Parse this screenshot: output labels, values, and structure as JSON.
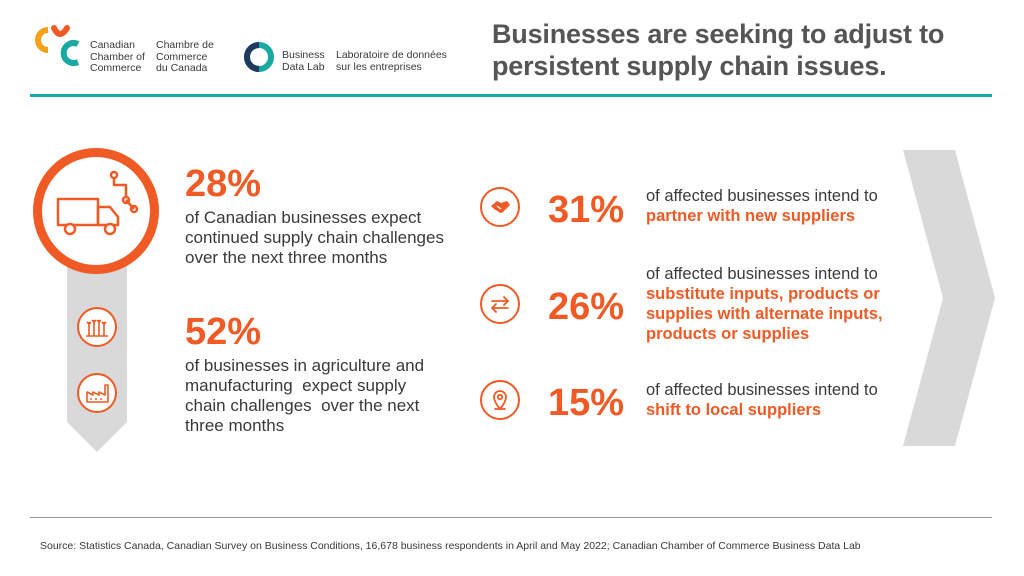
{
  "header": {
    "ccc_name_en": [
      "Canadian",
      "Chamber of",
      "Commerce"
    ],
    "ccc_name_fr": [
      "Chambre de",
      "Commerce",
      "du Canada"
    ],
    "bdl_name_en": [
      "Business",
      "Data Lab"
    ],
    "bdl_name_fr": [
      "Laboratoire de données",
      "sur les entreprises"
    ],
    "title_line1": "Businesses are seeking to adjust to",
    "title_line2": "persistent supply chain issues."
  },
  "left": {
    "stat1": {
      "value": "28%",
      "lines": [
        "of Canadian businesses expect",
        "continued supply chain challenges",
        "over the next three months"
      ]
    },
    "stat2": {
      "value": "52%",
      "lines": [
        "of businesses in agriculture and",
        "manufacturing  expect supply",
        "chain challenges  over the next",
        "three months"
      ]
    }
  },
  "right": {
    "items": [
      {
        "value": "31%",
        "intro": "of affected businesses intend to",
        "action": [
          "partner with new suppliers"
        ]
      },
      {
        "value": "26%",
        "intro": "of affected businesses intend to",
        "action": [
          "substitute inputs, products or",
          "supplies with alternate inputs,",
          "products or supplies"
        ]
      },
      {
        "value": "15%",
        "intro": "of affected businesses intend to",
        "action": [
          "shift to local suppliers"
        ]
      }
    ]
  },
  "footer": {
    "source": "Source: Statistics Canada, Canadian Survey on Business Conditions, 16,678 business respondents in April and May 2022; Canadian Chamber of Commerce Business Data Lab"
  },
  "colors": {
    "accent": "#f05a24",
    "teal": "#1aa8a3",
    "gray_shape": "#d9d9d9",
    "text": "#3a3a3a"
  },
  "icons": [
    "ccc-logo-icon",
    "data-lab-logo-icon",
    "truck-icon",
    "wheat-icon",
    "factory-icon",
    "handshake-icon",
    "swap-arrows-icon",
    "location-pin-icon",
    "chevron-right-icon"
  ]
}
